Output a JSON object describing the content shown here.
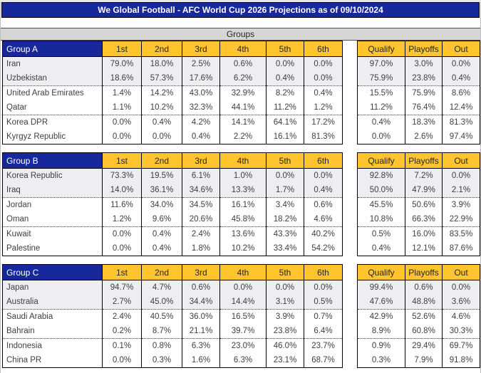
{
  "title": "We Global Football - AFC World Cup 2026 Projections as of 09/10/2024",
  "section_header": "Groups",
  "position_columns": [
    "1st",
    "2nd",
    "3rd",
    "4th",
    "5th",
    "6th"
  ],
  "outcome_columns": [
    "Qualify",
    "Playoffs",
    "Out"
  ],
  "colors": {
    "header_blue": "#16289C",
    "gold": "#FFC42E",
    "band_gray": "#D6D6D6",
    "qualify_row_tint": "#EDEDF2",
    "text": "#3F3F3F"
  },
  "groups": [
    {
      "name": "Group A",
      "teams": [
        {
          "team": "Iran",
          "positions": [
            "79.0%",
            "18.0%",
            "2.5%",
            "0.6%",
            "0.0%",
            "0.0%"
          ],
          "outcomes": [
            "97.0%",
            "3.0%",
            "0.0%"
          ]
        },
        {
          "team": "Uzbekistan",
          "positions": [
            "18.6%",
            "57.3%",
            "17.6%",
            "6.2%",
            "0.4%",
            "0.0%"
          ],
          "outcomes": [
            "75.9%",
            "23.8%",
            "0.4%"
          ]
        },
        {
          "team": "United Arab Emirates",
          "positions": [
            "1.4%",
            "14.2%",
            "43.0%",
            "32.9%",
            "8.2%",
            "0.4%"
          ],
          "outcomes": [
            "15.5%",
            "75.9%",
            "8.6%"
          ]
        },
        {
          "team": "Qatar",
          "positions": [
            "1.1%",
            "10.2%",
            "32.3%",
            "44.1%",
            "11.2%",
            "1.2%"
          ],
          "outcomes": [
            "11.2%",
            "76.4%",
            "12.4%"
          ]
        },
        {
          "team": "Korea DPR",
          "positions": [
            "0.0%",
            "0.4%",
            "4.2%",
            "14.1%",
            "64.1%",
            "17.2%"
          ],
          "outcomes": [
            "0.4%",
            "18.3%",
            "81.3%"
          ]
        },
        {
          "team": "Kyrgyz Republic",
          "positions": [
            "0.0%",
            "0.0%",
            "0.4%",
            "2.2%",
            "16.1%",
            "81.3%"
          ],
          "outcomes": [
            "0.0%",
            "2.6%",
            "97.4%"
          ]
        }
      ]
    },
    {
      "name": "Group B",
      "teams": [
        {
          "team": "Korea Republic",
          "positions": [
            "73.3%",
            "19.5%",
            "6.1%",
            "1.0%",
            "0.0%",
            "0.0%"
          ],
          "outcomes": [
            "92.8%",
            "7.2%",
            "0.0%"
          ]
        },
        {
          "team": "Iraq",
          "positions": [
            "14.0%",
            "36.1%",
            "34.6%",
            "13.3%",
            "1.7%",
            "0.4%"
          ],
          "outcomes": [
            "50.0%",
            "47.9%",
            "2.1%"
          ]
        },
        {
          "team": "Jordan",
          "positions": [
            "11.6%",
            "34.0%",
            "34.5%",
            "16.1%",
            "3.4%",
            "0.6%"
          ],
          "outcomes": [
            "45.5%",
            "50.6%",
            "3.9%"
          ]
        },
        {
          "team": "Oman",
          "positions": [
            "1.2%",
            "9.6%",
            "20.6%",
            "45.8%",
            "18.2%",
            "4.6%"
          ],
          "outcomes": [
            "10.8%",
            "66.3%",
            "22.9%"
          ]
        },
        {
          "team": "Kuwait",
          "positions": [
            "0.0%",
            "0.4%",
            "2.4%",
            "13.6%",
            "43.3%",
            "40.2%"
          ],
          "outcomes": [
            "0.5%",
            "16.0%",
            "83.5%"
          ]
        },
        {
          "team": "Palestine",
          "positions": [
            "0.0%",
            "0.4%",
            "1.8%",
            "10.2%",
            "33.4%",
            "54.2%"
          ],
          "outcomes": [
            "0.4%",
            "12.1%",
            "87.6%"
          ]
        }
      ]
    },
    {
      "name": "Group C",
      "teams": [
        {
          "team": "Japan",
          "positions": [
            "94.7%",
            "4.7%",
            "0.6%",
            "0.0%",
            "0.0%",
            "0.0%"
          ],
          "outcomes": [
            "99.4%",
            "0.6%",
            "0.0%"
          ]
        },
        {
          "team": "Australia",
          "positions": [
            "2.7%",
            "45.0%",
            "34.4%",
            "14.4%",
            "3.1%",
            "0.5%"
          ],
          "outcomes": [
            "47.6%",
            "48.8%",
            "3.6%"
          ]
        },
        {
          "team": "Saudi Arabia",
          "positions": [
            "2.4%",
            "40.5%",
            "36.0%",
            "16.5%",
            "3.9%",
            "0.7%"
          ],
          "outcomes": [
            "42.9%",
            "52.6%",
            "4.6%"
          ]
        },
        {
          "team": "Bahrain",
          "positions": [
            "0.2%",
            "8.7%",
            "21.1%",
            "39.7%",
            "23.8%",
            "6.4%"
          ],
          "outcomes": [
            "8.9%",
            "60.8%",
            "30.3%"
          ]
        },
        {
          "team": "Indonesia",
          "positions": [
            "0.1%",
            "0.8%",
            "6.3%",
            "23.0%",
            "46.0%",
            "23.7%"
          ],
          "outcomes": [
            "0.9%",
            "29.4%",
            "69.7%"
          ]
        },
        {
          "team": "China PR",
          "positions": [
            "0.0%",
            "0.3%",
            "1.6%",
            "6.3%",
            "23.1%",
            "68.7%"
          ],
          "outcomes": [
            "0.3%",
            "7.9%",
            "91.8%"
          ]
        }
      ]
    }
  ]
}
